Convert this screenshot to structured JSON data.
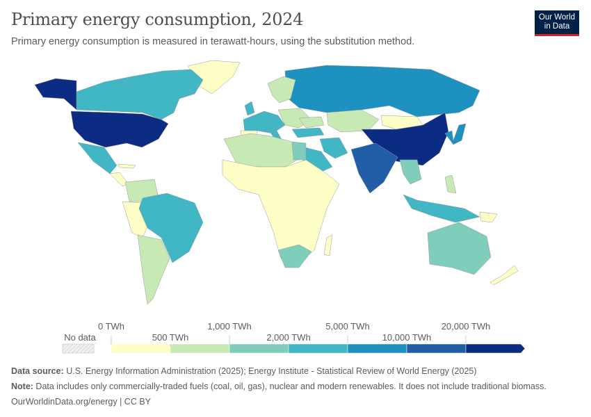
{
  "header": {
    "title": "Primary energy consumption, 2024",
    "subtitle": "Primary energy consumption is measured in terawatt-hours, using the substitution method."
  },
  "logo": {
    "line1": "Our World",
    "line2": "in Data"
  },
  "chart_data": {
    "type": "choropleth",
    "title": "Primary energy consumption, 2024",
    "unit": "TWh",
    "legend": {
      "no_data_label": "No data",
      "no_data_color": "#e9e9e9",
      "bins": [
        {
          "from": "0 TWh",
          "to": "500 TWh",
          "color": "#fefec7"
        },
        {
          "from": "500 TWh",
          "to": "1,000 TWh",
          "color": "#c7e9b4"
        },
        {
          "from": "1,000 TWh",
          "to": "2,000 TWh",
          "color": "#7fcdbb"
        },
        {
          "from": "2,000 TWh",
          "to": "5,000 TWh",
          "color": "#41b6c4"
        },
        {
          "from": "5,000 TWh",
          "to": "10,000 TWh",
          "color": "#1d91c0"
        },
        {
          "from": "10,000 TWh",
          "to": "20,000 TWh",
          "color": "#225ea8"
        },
        {
          "from": "20,000 TWh",
          "to": "",
          "color": "#0c2c84"
        }
      ],
      "top_labels": [
        "0 TWh",
        "1,000 TWh",
        "5,000 TWh",
        "20,000 TWh"
      ],
      "bottom_labels": [
        "500 TWh",
        "2,000 TWh",
        "10,000 TWh"
      ]
    }
  },
  "footer": {
    "source_label": "Data source:",
    "source_text": " U.S. Energy Information Administration (2025); Energy Institute - Statistical Review of World Energy (2025)",
    "note_label": "Note:",
    "note_text": " Data includes only commercially-traded fuels (coal, oil, gas), nuclear and modern renewables. It does not include traditional biomass.",
    "url": "OurWorldinData.org/energy | CC BY"
  }
}
